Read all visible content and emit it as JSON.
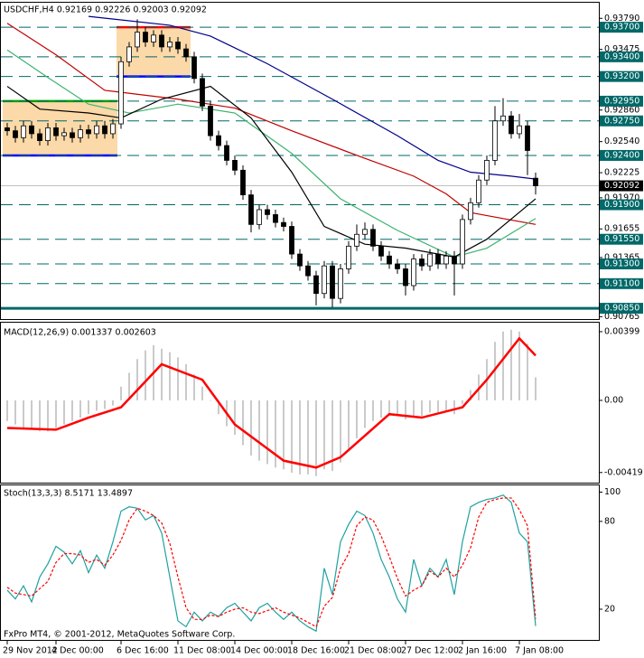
{
  "chart_data": [
    {
      "type": "candlestick",
      "title": "USDCHF,H4  0.92169 0.92226 0.92003 0.92092",
      "up_color": "#ffffff",
      "down_color": "#000000",
      "open": [
        0.9268,
        0.9265,
        0.9258,
        0.927,
        0.9262,
        0.9255,
        0.9268,
        0.926,
        0.9263,
        0.9258,
        0.9266,
        0.9262,
        0.927,
        0.9262,
        0.9272,
        0.9335,
        0.935,
        0.9365,
        0.9355,
        0.9362,
        0.935,
        0.9355,
        0.9348,
        0.934,
        0.9318,
        0.929,
        0.926,
        0.925,
        0.9235,
        0.9225,
        0.92,
        0.917,
        0.9185,
        0.918,
        0.9172,
        0.9168,
        0.914,
        0.9128,
        0.9118,
        0.91,
        0.9128,
        0.9095,
        0.9125,
        0.9148,
        0.916,
        0.9165,
        0.9148,
        0.9138,
        0.913,
        0.9125,
        0.9108,
        0.9135,
        0.9128,
        0.914,
        0.913,
        0.9138,
        0.913,
        0.9175,
        0.9192,
        0.9215,
        0.9235,
        0.9275,
        0.928,
        0.9262,
        0.927,
        0.92169
      ],
      "high": [
        0.9273,
        0.927,
        0.9275,
        0.9275,
        0.9267,
        0.9273,
        0.9273,
        0.9268,
        0.9268,
        0.9271,
        0.9271,
        0.9275,
        0.9275,
        0.9277,
        0.934,
        0.9355,
        0.9378,
        0.937,
        0.9367,
        0.9367,
        0.936,
        0.936,
        0.9353,
        0.9345,
        0.9323,
        0.9295,
        0.9265,
        0.9255,
        0.924,
        0.923,
        0.9205,
        0.919,
        0.919,
        0.9185,
        0.9177,
        0.9173,
        0.9145,
        0.9133,
        0.9123,
        0.9133,
        0.9133,
        0.913,
        0.9153,
        0.917,
        0.9172,
        0.917,
        0.9153,
        0.9143,
        0.9135,
        0.913,
        0.914,
        0.914,
        0.9145,
        0.9145,
        0.9143,
        0.9143,
        0.918,
        0.9197,
        0.922,
        0.924,
        0.929,
        0.9298,
        0.9285,
        0.9282,
        0.9275,
        0.92226
      ],
      "low": [
        0.926,
        0.9253,
        0.9253,
        0.9257,
        0.925,
        0.925,
        0.9255,
        0.9255,
        0.9253,
        0.9253,
        0.9257,
        0.9257,
        0.9257,
        0.9257,
        0.9267,
        0.933,
        0.9345,
        0.935,
        0.935,
        0.9345,
        0.9345,
        0.9343,
        0.9335,
        0.9313,
        0.9285,
        0.9255,
        0.9245,
        0.923,
        0.922,
        0.9195,
        0.9162,
        0.9165,
        0.9175,
        0.9167,
        0.9163,
        0.9135,
        0.9123,
        0.9113,
        0.9088,
        0.9095,
        0.9086,
        0.909,
        0.912,
        0.9143,
        0.9155,
        0.9143,
        0.9133,
        0.9125,
        0.912,
        0.9098,
        0.9103,
        0.9123,
        0.9123,
        0.9125,
        0.9125,
        0.9098,
        0.9125,
        0.917,
        0.9187,
        0.921,
        0.923,
        0.927,
        0.9257,
        0.9257,
        0.922,
        0.92003
      ],
      "close": [
        0.9265,
        0.9258,
        0.927,
        0.9262,
        0.9255,
        0.9268,
        0.926,
        0.9263,
        0.9258,
        0.9266,
        0.9262,
        0.927,
        0.9262,
        0.9272,
        0.9335,
        0.935,
        0.9365,
        0.9355,
        0.9362,
        0.935,
        0.9355,
        0.9348,
        0.934,
        0.9318,
        0.929,
        0.926,
        0.925,
        0.9235,
        0.9225,
        0.92,
        0.917,
        0.9185,
        0.918,
        0.9172,
        0.9168,
        0.914,
        0.9128,
        0.9118,
        0.91,
        0.9128,
        0.9095,
        0.9125,
        0.9148,
        0.916,
        0.9165,
        0.9148,
        0.9138,
        0.913,
        0.9125,
        0.9108,
        0.9135,
        0.9128,
        0.914,
        0.913,
        0.9138,
        0.913,
        0.9175,
        0.9192,
        0.9215,
        0.9235,
        0.9275,
        0.928,
        0.9262,
        0.927,
        0.9245,
        0.92092
      ],
      "series": [
        {
          "color": "#00008b",
          "x": [
            10,
            20,
            25,
            32,
            40,
            48,
            53,
            57,
            62,
            65
          ],
          "values": [
            0.9381,
            0.9372,
            0.9361,
            0.9333,
            0.9297,
            0.926,
            0.9235,
            0.9223,
            0.9219,
            0.9216
          ]
        },
        {
          "color": "#c00000",
          "x": [
            0,
            6,
            12,
            21,
            28,
            35,
            44,
            50,
            54,
            57,
            61,
            65
          ],
          "values": [
            0.9374,
            0.9342,
            0.9306,
            0.9297,
            0.9288,
            0.9265,
            0.9237,
            0.9219,
            0.9201,
            0.9182,
            0.9176,
            0.917
          ]
        },
        {
          "color": "#3cb371",
          "x": [
            0,
            5,
            10,
            15,
            21,
            28,
            35,
            41,
            48,
            55,
            59,
            65
          ],
          "values": [
            0.9347,
            0.9319,
            0.9292,
            0.9283,
            0.9292,
            0.9283,
            0.9242,
            0.9196,
            0.9164,
            0.9137,
            0.9146,
            0.9176
          ]
        },
        {
          "color": "#000000",
          "x": [
            0,
            4,
            10,
            14,
            19,
            25,
            30,
            35,
            39,
            44,
            49,
            55,
            59,
            65
          ],
          "values": [
            0.931,
            0.9287,
            0.9283,
            0.9278,
            0.9297,
            0.931,
            0.9278,
            0.9223,
            0.9168,
            0.915,
            0.9146,
            0.9137,
            0.9155,
            0.9196
          ]
        }
      ],
      "zones": [
        {
          "from": 0,
          "to": 13,
          "low": 0.924,
          "high": 0.9295,
          "color": "#fcd9a8",
          "low_color": "#0000ff",
          "high_color": "#00a000"
        },
        {
          "from": 14,
          "to": 22,
          "low": 0.932,
          "high": 0.937,
          "color": "#fcd9a8",
          "low_color": "#0000ff",
          "high_color": "#ff0000"
        }
      ],
      "ylim": [
        0.9075,
        0.9393
      ],
      "yticks": [
        {
          "value": 0.9379,
          "label": "0.93790"
        },
        {
          "value": 0.93475,
          "label": "0.93475"
        },
        {
          "value": 0.9286,
          "label": "0.92860"
        },
        {
          "value": 0.9254,
          "label": "0.92540"
        },
        {
          "value": 0.92225,
          "label": "0.92225"
        },
        {
          "value": 0.9197,
          "label": "0.91970"
        },
        {
          "value": 0.91655,
          "label": "0.91655"
        },
        {
          "value": 0.91365,
          "label": "0.91365"
        },
        {
          "value": 0.90765,
          "label": "0.90765"
        }
      ],
      "level_color": "#006868",
      "levels": [
        {
          "value": 0.937,
          "label": "0.93700"
        },
        {
          "value": 0.934,
          "label": "0.93400"
        },
        {
          "value": 0.932,
          "label": "0.93200"
        },
        {
          "value": 0.9295,
          "label": "0.92950"
        },
        {
          "value": 0.9275,
          "label": "0.92750"
        },
        {
          "value": 0.924,
          "label": "0.92400"
        },
        {
          "value": 0.919,
          "label": "0.91900"
        },
        {
          "value": 0.9155,
          "label": "0.91550"
        },
        {
          "value": 0.913,
          "label": "0.91300"
        },
        {
          "value": 0.911,
          "label": "0.91100"
        },
        {
          "value": 0.9085,
          "label": "0.90850"
        }
      ],
      "last": {
        "value": 0.92092,
        "label": "0.92092"
      }
    },
    {
      "type": "bar",
      "title": "MACD(12,26,9) 0.001337 0.002603",
      "color": "#b8b8b8",
      "values": [
        -0.0012,
        -0.0014,
        -0.0016,
        -0.0017,
        -0.0018,
        -0.0018,
        -0.0016,
        -0.0014,
        -0.0012,
        -0.001,
        -0.0008,
        -0.0006,
        -0.0005,
        -0.0003,
        0.0008,
        0.0016,
        0.0024,
        0.0029,
        0.0032,
        0.003,
        0.0028,
        0.0025,
        0.0021,
        0.0015,
        0.0008,
        0.0,
        -0.0008,
        -0.0015,
        -0.002,
        -0.0026,
        -0.0032,
        -0.0035,
        -0.0037,
        -0.0039,
        -0.004,
        -0.0042,
        -0.0043,
        -0.0043,
        -0.0044,
        -0.004,
        -0.0041,
        -0.0036,
        -0.0029,
        -0.0022,
        -0.0016,
        -0.0012,
        -0.001,
        -0.0009,
        -0.0009,
        -0.0011,
        -0.0009,
        -0.0009,
        -0.0007,
        -0.0007,
        -0.0006,
        -0.0008,
        -0.0002,
        0.0006,
        0.0015,
        0.0024,
        0.0034,
        0.004,
        0.0041,
        0.004,
        0.0033,
        0.001337
      ],
      "series": [
        {
          "color": "#ff0000",
          "x": [
            0,
            6,
            10,
            14,
            19,
            24,
            28,
            34,
            38,
            41,
            47,
            51,
            56,
            59,
            63,
            65
          ],
          "values": [
            -0.0016,
            -0.0017,
            -0.001,
            -0.0004,
            0.0021,
            0.0012,
            -0.0014,
            -0.0035,
            -0.0039,
            -0.0033,
            -0.0008,
            -0.001,
            -0.0004,
            0.0012,
            0.0036,
            0.002603
          ]
        }
      ],
      "ylim": [
        -0.00483,
        0.00446
      ],
      "yticks": [
        {
          "value": 0.00399,
          "label": "0.00399"
        },
        {
          "value": 0,
          "label": "0.00"
        },
        {
          "value": -0.00419,
          "label": "-0.00419"
        }
      ]
    },
    {
      "type": "line",
      "title": "Stoch(13,3,3) 8.5171 13.4897",
      "series": [
        {
          "color": "#20a0a0",
          "values": [
            33,
            27,
            36,
            25,
            42,
            51,
            63,
            59,
            51,
            60,
            45,
            57,
            48,
            66,
            87,
            90,
            89,
            81,
            84,
            72,
            42,
            12,
            8,
            18,
            12,
            18,
            15,
            21,
            24,
            18,
            12,
            21,
            24,
            18,
            13,
            18,
            12,
            8,
            5,
            48,
            30,
            66,
            78,
            87,
            84,
            72,
            54,
            42,
            27,
            18,
            54,
            36,
            48,
            42,
            54,
            30,
            66,
            90,
            93,
            95,
            96,
            98,
            93,
            72,
            66,
            8.5171
          ]
        },
        {
          "color": "#ff0000",
          "dash": true,
          "values": [
            35,
            31,
            30,
            29,
            34,
            39,
            52,
            58,
            58,
            57,
            52,
            54,
            50,
            57,
            67,
            81,
            89,
            87,
            84,
            79,
            65,
            42,
            21,
            13,
            13,
            16,
            15,
            18,
            20,
            21,
            18,
            17,
            19,
            21,
            18,
            16,
            14,
            11,
            8,
            22,
            28,
            48,
            58,
            77,
            83,
            81,
            70,
            56,
            41,
            29,
            33,
            36,
            46,
            42,
            48,
            42,
            50,
            62,
            83,
            93,
            95,
            96,
            96,
            88,
            77,
            13.4897
          ]
        }
      ],
      "ylim": [
        -1,
        104
      ],
      "yticks": [
        100,
        80,
        20
      ],
      "xticks": [
        {
          "value": 0,
          "label": "29 Nov 2012"
        },
        {
          "value": 6,
          "label": "4 Dec 00:00"
        },
        {
          "value": 14,
          "label": "6 Dec 16:00"
        },
        {
          "value": 21,
          "label": "11 Dec 08:00"
        },
        {
          "value": 28,
          "label": "14 Dec 00:00"
        },
        {
          "value": 35,
          "label": "18 Dec 16:00"
        },
        {
          "value": 42,
          "label": "21 Dec 08:00"
        },
        {
          "value": 49,
          "label": "27 Dec 12:00"
        },
        {
          "value": 56,
          "label": "2 Jan 16:00"
        },
        {
          "value": 63,
          "label": "7 Jan 08:00"
        }
      ]
    }
  ],
  "footer": "FxPro MT4, © 2001-2012, MetaQuotes Software Corp."
}
